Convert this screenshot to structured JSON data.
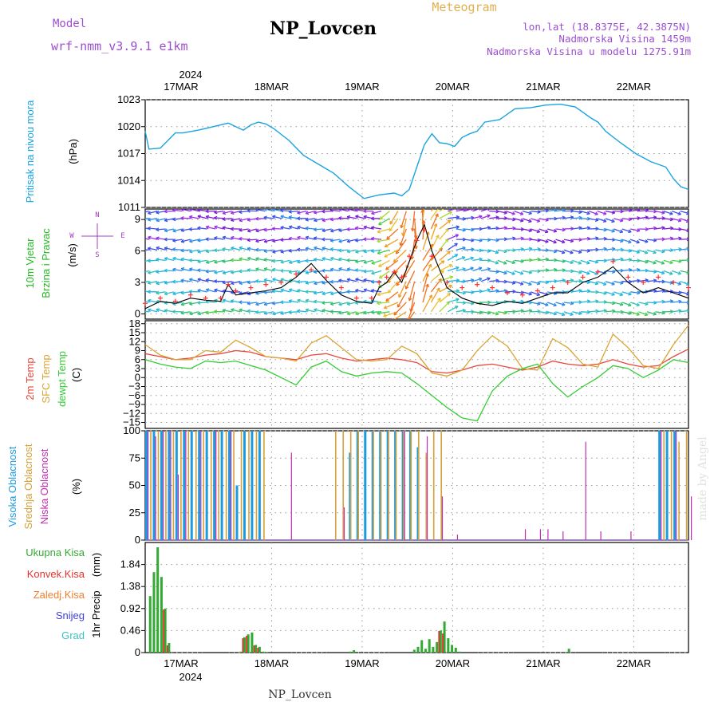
{
  "header": {
    "model_label": "Model",
    "model_name": "wrf-nmm_v3.9.1 e1km",
    "station": "NP_Lovcen",
    "meteogram_label": "Meteogram",
    "lonlat": "lon,lat (18.8375E, 42.3875N)",
    "elevation": "Nadmorska Visina 1459m",
    "model_elevation": "Nadmorska Visina u modelu 1275.91m",
    "footer_station": "NP_Lovcen",
    "watermark": "made by Angel",
    "year": "2024",
    "days": [
      "17MAR",
      "18MAR",
      "19MAR",
      "20MAR",
      "21MAR",
      "22MAR"
    ]
  },
  "colors": {
    "pressure": "#1aa3e0",
    "wind_title": "#22bb22",
    "temp_2m": "#e8473b",
    "temp_sfc": "#d9a432",
    "dewpoint": "#33cc33",
    "cloud_high": "#1e9be0",
    "cloud_mid": "#d4a13a",
    "cloud_low": "#c02fb0",
    "precip_total": "#33aa33",
    "precip_conv": "#e83030",
    "precip_strat": "#f08030",
    "snow": "#4040e0",
    "graupel": "#40c0c0",
    "header_purple": "#9b4fd0",
    "header_gold": "#e0b050",
    "wind_speed_line": "#000000",
    "gust_marker": "#ff3030"
  },
  "chart_data": [
    {
      "type": "line",
      "panel": "pressure",
      "ylabel": "Pritisak na nivou mora",
      "unit": "(hPa)",
      "ylim": [
        1011,
        1023
      ],
      "yticks": [
        1011,
        1014,
        1017,
        1020,
        1023
      ],
      "xlim_hours": [
        -10,
        134
      ],
      "x_hours": [
        -10,
        -9,
        -6,
        -2,
        0,
        4,
        8,
        12,
        16,
        18,
        20,
        22,
        24,
        28,
        32,
        36,
        40,
        44,
        48,
        52,
        56,
        58,
        60,
        62,
        64,
        66,
        68,
        70,
        72,
        74,
        76,
        78,
        80,
        84,
        88,
        92,
        96,
        100,
        104,
        106,
        108,
        110,
        112,
        116,
        120,
        124,
        128,
        130,
        132,
        134
      ],
      "values": [
        1019.5,
        1017.5,
        1017.6,
        1019.3,
        1019.3,
        1019.6,
        1020,
        1020.4,
        1019.6,
        1020.2,
        1020.5,
        1020.3,
        1019.8,
        1018.5,
        1016.8,
        1015.8,
        1014.8,
        1013.3,
        1012.0,
        1012.4,
        1012.6,
        1012.3,
        1013.0,
        1015.5,
        1018.0,
        1019.2,
        1018.2,
        1018.1,
        1017.8,
        1018.8,
        1019.2,
        1019.5,
        1020.5,
        1020.8,
        1022.0,
        1022.1,
        1022.4,
        1022.5,
        1022.2,
        1021.6,
        1021.0,
        1020.5,
        1019.5,
        1018.2,
        1017.0,
        1016.1,
        1015.5,
        1014.2,
        1013.3,
        1013.0
      ],
      "grid": true
    },
    {
      "type": "line",
      "panel": "wind",
      "title": "10m Vjetar",
      "ylabel": "Brzina i Pravac",
      "unit": "(m/s)",
      "compass_labels": [
        "N",
        "W",
        "E",
        "S"
      ],
      "ylim": [
        -0.5,
        10
      ],
      "yticks": [
        0,
        3,
        6,
        9
      ],
      "x_hours": [
        -10,
        -6,
        -2,
        2,
        6,
        10,
        12,
        14,
        18,
        22,
        26,
        30,
        34,
        38,
        42,
        46,
        50,
        52,
        54,
        56,
        58,
        60,
        62,
        64,
        66,
        70,
        74,
        78,
        82,
        86,
        90,
        94,
        98,
        102,
        106,
        110,
        114,
        118,
        122,
        126,
        130,
        134
      ],
      "speed": [
        0.5,
        1.2,
        1.0,
        1.5,
        1.3,
        1.2,
        2.8,
        1.8,
        2.0,
        2.2,
        2.5,
        3.5,
        4.8,
        3.2,
        1.8,
        1.2,
        1.0,
        2.5,
        3.0,
        4.0,
        3.0,
        5.0,
        7.0,
        8.5,
        6.0,
        2.5,
        1.5,
        1.0,
        0.8,
        1.2,
        1.0,
        1.5,
        2.0,
        2.0,
        3.0,
        3.5,
        4.5,
        3.0,
        2.0,
        2.5,
        2.0,
        1.5
      ],
      "gust": [
        1.0,
        1.5,
        1.2,
        1.8,
        1.5,
        1.5,
        2.8,
        2.2,
        2.5,
        2.8,
        3.0,
        3.8,
        4.2,
        3.5,
        2.5,
        1.5,
        1.5,
        3.0,
        3.5,
        4.0,
        3.5,
        5.5,
        7.0,
        8.0,
        5.5,
        3.0,
        2.5,
        2.8,
        2.5,
        2.0,
        1.8,
        2.2,
        2.5,
        3.0,
        3.5,
        4.0,
        5.0,
        3.5,
        3.0,
        3.5,
        3.0,
        2.5
      ],
      "grid": true
    },
    {
      "type": "line",
      "panel": "temperature",
      "ylabel": "(C)",
      "ylim": [
        -17,
        19
      ],
      "yticks": [
        -15,
        -12,
        -9,
        -6,
        -3,
        0,
        3,
        6,
        9,
        12,
        15,
        18
      ],
      "x_hours": [
        -10,
        -6,
        -2,
        2,
        6,
        10,
        14,
        18,
        22,
        26,
        30,
        34,
        38,
        42,
        46,
        50,
        54,
        58,
        62,
        66,
        70,
        74,
        78,
        82,
        86,
        90,
        94,
        98,
        102,
        106,
        110,
        114,
        118,
        122,
        126,
        130,
        134
      ],
      "series": [
        {
          "name": "2m Temp",
          "values": [
            8.0,
            7.0,
            6.0,
            6.5,
            7.5,
            8.0,
            9.0,
            8.5,
            7.0,
            6.5,
            6.0,
            7.5,
            8.0,
            6.5,
            5.5,
            6.0,
            6.5,
            6.0,
            5.0,
            2.0,
            1.5,
            2.5,
            4.0,
            4.5,
            3.5,
            2.5,
            3.5,
            5.5,
            4.5,
            4.0,
            4.5,
            6.0,
            4.5,
            3.5,
            4.0,
            7.0,
            9.5
          ]
        },
        {
          "name": "SFC Temp",
          "values": [
            11.0,
            7.5,
            6.0,
            6.0,
            9.0,
            8.5,
            12.5,
            10.0,
            7.0,
            6.5,
            5.5,
            11.5,
            14.0,
            10.0,
            6.0,
            5.5,
            6.0,
            10.5,
            8.0,
            1.5,
            0.5,
            2.5,
            9.0,
            14.0,
            10.5,
            3.0,
            2.5,
            13.0,
            10.0,
            4.5,
            3.5,
            14.5,
            10.0,
            4.0,
            3.0,
            11.0,
            17.5
          ]
        },
        {
          "name": "dewpt Temp",
          "values": [
            6.0,
            4.5,
            3.5,
            3.0,
            5.5,
            5.0,
            5.5,
            4.0,
            2.5,
            0.0,
            -2.5,
            3.5,
            5.5,
            2.0,
            0.5,
            1.5,
            2.0,
            1.5,
            -2.0,
            -6.0,
            -10.0,
            -13.5,
            -14.5,
            -4.5,
            0.5,
            3.0,
            4.5,
            -2.0,
            -6.5,
            -3.0,
            0.0,
            4.0,
            3.0,
            0.0,
            2.5,
            6.0,
            5.0
          ]
        }
      ],
      "grid": true
    },
    {
      "type": "bar",
      "panel": "cloud",
      "ylabel": "(%)",
      "ylim": [
        0,
        100
      ],
      "yticks": [
        0,
        25,
        50,
        75,
        100
      ],
      "series": [
        {
          "name": "Visoka Oblacnost",
          "events": [
            [
              -10,
              100
            ],
            [
              -8,
              100
            ],
            [
              -6,
              100
            ],
            [
              -4,
              100
            ],
            [
              -2,
              100
            ],
            [
              0,
              100
            ],
            [
              2,
              100
            ],
            [
              4,
              100
            ],
            [
              6,
              100
            ],
            [
              8,
              100
            ],
            [
              10,
              100
            ],
            [
              12,
              100
            ],
            [
              14,
              50
            ],
            [
              16,
              100
            ],
            [
              18,
              100
            ],
            [
              20,
              100
            ],
            [
              40,
              0
            ],
            [
              44,
              80
            ],
            [
              46,
              100
            ],
            [
              48,
              100
            ],
            [
              50,
              100
            ],
            [
              52,
              100
            ],
            [
              54,
              100
            ],
            [
              56,
              100
            ],
            [
              58,
              100
            ],
            [
              60,
              100
            ],
            [
              62,
              85
            ],
            [
              126,
              100
            ],
            [
              128,
              100
            ],
            [
              130,
              100
            ]
          ]
        },
        {
          "name": "Srednja Oblacnost",
          "events": [
            [
              -9,
              100
            ],
            [
              -7,
              100
            ],
            [
              -5,
              100
            ],
            [
              -3,
              100
            ],
            [
              -1,
              100
            ],
            [
              1,
              100
            ],
            [
              3,
              100
            ],
            [
              5,
              100
            ],
            [
              7,
              100
            ],
            [
              9,
              100
            ],
            [
              11,
              100
            ],
            [
              13,
              100
            ],
            [
              15,
              100
            ],
            [
              17,
              100
            ],
            [
              19,
              100
            ],
            [
              21,
              100
            ],
            [
              40,
              100
            ],
            [
              42,
              100
            ],
            [
              44,
              100
            ],
            [
              46,
              100
            ],
            [
              50,
              100
            ],
            [
              52,
              100
            ],
            [
              54,
              100
            ],
            [
              56,
              100
            ],
            [
              58,
              100
            ],
            [
              60,
              100
            ],
            [
              62,
              100
            ],
            [
              64,
              80
            ],
            [
              66,
              100
            ],
            [
              68,
              100
            ],
            [
              127,
              100
            ],
            [
              129,
              100
            ],
            [
              131,
              90
            ],
            [
              133,
              100
            ]
          ]
        },
        {
          "name": "Niska Oblacnost",
          "events": [
            [
              -10,
              100
            ],
            [
              -8,
              95
            ],
            [
              -6,
              100
            ],
            [
              -4,
              100
            ],
            [
              -2,
              60
            ],
            [
              0,
              100
            ],
            [
              4,
              100
            ],
            [
              8,
              100
            ],
            [
              12,
              100
            ],
            [
              28,
              80
            ],
            [
              42,
              30
            ],
            [
              58,
              100
            ],
            [
              64,
              95
            ],
            [
              68,
              40
            ],
            [
              72,
              5
            ],
            [
              90,
              10
            ],
            [
              94,
              10
            ],
            [
              96,
              10
            ],
            [
              100,
              8
            ],
            [
              106,
              90
            ],
            [
              110,
              8
            ],
            [
              118,
              8
            ],
            [
              126,
              100
            ],
            [
              130,
              100
            ],
            [
              134,
              40
            ]
          ]
        }
      ],
      "grid": true
    },
    {
      "type": "bar",
      "panel": "precipitation",
      "ylabel": "1hr Precip",
      "unit": "(mm)",
      "ylim": [
        0,
        2.3
      ],
      "yticks": [
        0,
        0.46,
        0.92,
        1.38,
        1.84
      ],
      "legend": [
        "Ukupna Kisa",
        "Konvek.Kisa",
        "Zaledj.Kisa",
        "Snijeg",
        "Grad"
      ],
      "x_hours": [
        -9,
        -8,
        -7,
        -6,
        -5,
        -4,
        15,
        16,
        17,
        18,
        19,
        20,
        21,
        22,
        44,
        45,
        61,
        62,
        63,
        64,
        65,
        66,
        67,
        68,
        69,
        70,
        71,
        72,
        73,
        102
      ],
      "total": [
        1.18,
        1.68,
        2.2,
        1.58,
        0.92,
        0.2,
        0.02,
        0.32,
        0.38,
        0.42,
        0.16,
        0.12,
        0.02,
        0.01,
        0.02,
        0.05,
        0.06,
        0.12,
        0.26,
        0.08,
        0.28,
        0.12,
        0.22,
        0.46,
        0.65,
        0.3,
        0.16,
        0.1,
        0.02,
        0.08
      ],
      "convective": [
        0.0,
        0.0,
        0.0,
        0.0,
        0.9,
        0.15,
        0.0,
        0.3,
        0.35,
        0.0,
        0.15,
        0.1,
        0.0,
        0.0,
        0.0,
        0.0,
        0.0,
        0.0,
        0.0,
        0.0,
        0.0,
        0.0,
        0.0,
        0.45,
        0.4,
        0.0,
        0.0,
        0.0,
        0.0,
        0.0
      ],
      "grid": true
    }
  ]
}
